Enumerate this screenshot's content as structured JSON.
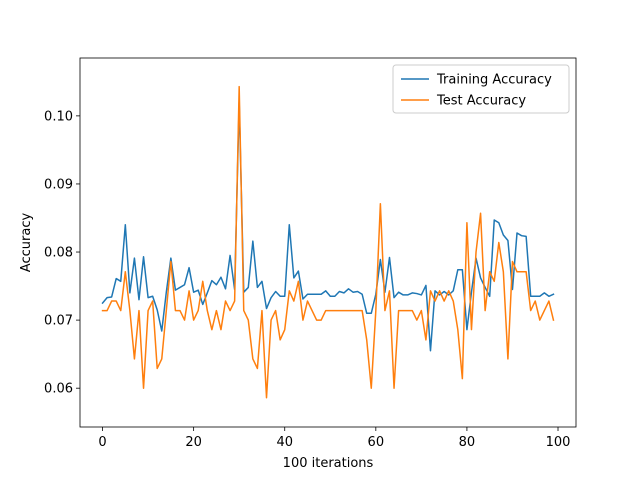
{
  "chart_data": {
    "type": "line",
    "title": "",
    "xlabel": "100 iterations",
    "ylabel": "Accuracy",
    "xlim": [
      -4.95,
      103.95
    ],
    "ylim": [
      0.0543,
      0.1085
    ],
    "xticks": [
      0,
      20,
      40,
      60,
      80,
      100
    ],
    "xtick_labels": [
      "0",
      "20",
      "40",
      "60",
      "80",
      "100"
    ],
    "yticks": [
      0.06,
      0.07,
      0.08,
      0.09,
      0.1
    ],
    "ytick_labels": [
      "0.06",
      "0.07",
      "0.08",
      "0.09",
      "0.10"
    ],
    "grid": false,
    "legend_position": "top-right",
    "x": [
      0,
      1,
      2,
      3,
      4,
      5,
      6,
      7,
      8,
      9,
      10,
      11,
      12,
      13,
      14,
      15,
      16,
      17,
      18,
      19,
      20,
      21,
      22,
      23,
      24,
      25,
      26,
      27,
      28,
      29,
      30,
      31,
      32,
      33,
      34,
      35,
      36,
      37,
      38,
      39,
      40,
      41,
      42,
      43,
      44,
      45,
      46,
      47,
      48,
      49,
      50,
      51,
      52,
      53,
      54,
      55,
      56,
      57,
      58,
      59,
      60,
      61,
      62,
      63,
      64,
      65,
      66,
      67,
      68,
      69,
      70,
      71,
      72,
      73,
      74,
      75,
      76,
      77,
      78,
      79,
      80,
      81,
      82,
      83,
      84,
      85,
      86,
      87,
      88,
      89,
      90,
      91,
      92,
      93,
      94,
      95,
      96,
      97,
      98,
      99
    ],
    "series": [
      {
        "name": "Training Accuracy",
        "color": "#1f77b4",
        "values": [
          0.0725,
          0.0733,
          0.0734,
          0.0761,
          0.0757,
          0.084,
          0.074,
          0.0791,
          0.073,
          0.0793,
          0.0733,
          0.0735,
          0.0715,
          0.0684,
          0.0741,
          0.0791,
          0.0744,
          0.0748,
          0.0752,
          0.0777,
          0.0741,
          0.0744,
          0.0723,
          0.074,
          0.0758,
          0.0752,
          0.0763,
          0.0746,
          0.0795,
          0.0745,
          0.102,
          0.0741,
          0.0748,
          0.0816,
          0.0748,
          0.0757,
          0.0717,
          0.0733,
          0.0742,
          0.0735,
          0.0735,
          0.084,
          0.0762,
          0.0772,
          0.0731,
          0.0738,
          0.0738,
          0.0738,
          0.0738,
          0.0743,
          0.0735,
          0.0735,
          0.0742,
          0.074,
          0.0746,
          0.0741,
          0.0742,
          0.0738,
          0.071,
          0.071,
          0.0738,
          0.0789,
          0.0741,
          0.0792,
          0.0733,
          0.0741,
          0.0737,
          0.0737,
          0.074,
          0.0739,
          0.0737,
          0.0751,
          0.0655,
          0.0743,
          0.0737,
          0.0742,
          0.0737,
          0.0743,
          0.0774,
          0.0774,
          0.0686,
          0.0741,
          0.0791,
          0.0762,
          0.0748,
          0.0735,
          0.0847,
          0.0843,
          0.0825,
          0.0817,
          0.0745,
          0.0828,
          0.0824,
          0.0823,
          0.0735,
          0.0735,
          0.0735,
          0.074,
          0.0735,
          0.0738
        ]
      },
      {
        "name": "Test Accuracy",
        "color": "#ff7f0e",
        "values": [
          0.0714,
          0.0714,
          0.0728,
          0.0728,
          0.0714,
          0.0771,
          0.0714,
          0.0643,
          0.0714,
          0.06,
          0.0714,
          0.0728,
          0.0629,
          0.0643,
          0.0714,
          0.0786,
          0.0714,
          0.0714,
          0.07,
          0.0743,
          0.07,
          0.0714,
          0.0757,
          0.0714,
          0.0686,
          0.0714,
          0.0686,
          0.0728,
          0.0714,
          0.0728,
          0.1043,
          0.0714,
          0.07,
          0.0643,
          0.0629,
          0.0714,
          0.0586,
          0.07,
          0.0714,
          0.0671,
          0.0686,
          0.0743,
          0.0728,
          0.0757,
          0.07,
          0.0728,
          0.0714,
          0.07,
          0.07,
          0.0714,
          0.0714,
          0.0714,
          0.0714,
          0.0714,
          0.0714,
          0.0714,
          0.0714,
          0.0714,
          0.0671,
          0.06,
          0.0714,
          0.0871,
          0.0714,
          0.0743,
          0.06,
          0.0714,
          0.0714,
          0.0714,
          0.0714,
          0.07,
          0.0714,
          0.0671,
          0.0743,
          0.0728,
          0.0743,
          0.0728,
          0.0743,
          0.0728,
          0.0686,
          0.0614,
          0.0843,
          0.0686,
          0.08,
          0.0857,
          0.0714,
          0.0771,
          0.0757,
          0.0814,
          0.0771,
          0.0643,
          0.0786,
          0.0771,
          0.0771,
          0.0771,
          0.0714,
          0.0728,
          0.07,
          0.0714,
          0.0728,
          0.07
        ]
      }
    ]
  }
}
